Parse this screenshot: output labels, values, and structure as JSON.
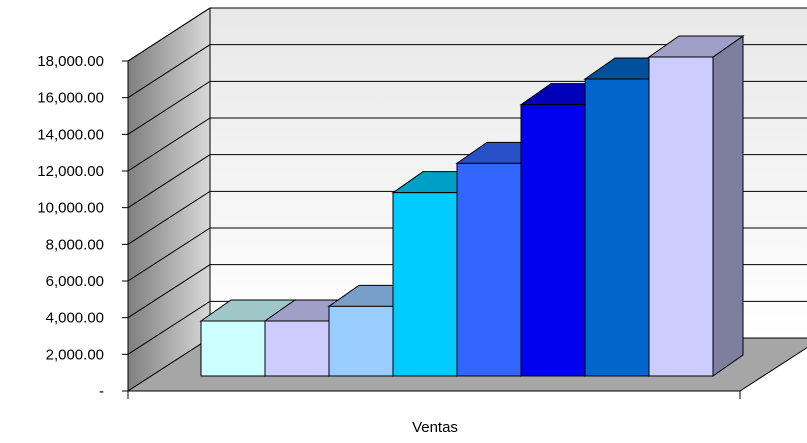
{
  "chart_data": {
    "type": "bar",
    "style": "3d-column",
    "categories": [
      "Ventas"
    ],
    "series": [
      {
        "values": [
          3000
        ],
        "color": "#ccffff"
      },
      {
        "values": [
          3000
        ],
        "color": "#ccccff"
      },
      {
        "values": [
          3800
        ],
        "color": "#99ccff"
      },
      {
        "values": [
          10000
        ],
        "color": "#00ccff"
      },
      {
        "values": [
          11600
        ],
        "color": "#3366ff"
      },
      {
        "values": [
          14800
        ],
        "color": "#0000ee"
      },
      {
        "values": [
          16200
        ],
        "color": "#0066cc"
      },
      {
        "values": [
          17400
        ],
        "color": "#ccccff"
      }
    ],
    "title": "",
    "xlabel": "Ventas",
    "ylabel": "",
    "ylim": [
      0,
      18000
    ],
    "yticks": [
      {
        "value": 0,
        "label": "-"
      },
      {
        "value": 2000,
        "label": "2,000.00"
      },
      {
        "value": 4000,
        "label": "4,000.00"
      },
      {
        "value": 6000,
        "label": "6,000.00"
      },
      {
        "value": 8000,
        "label": "8,000.00"
      },
      {
        "value": 10000,
        "label": "10,000.00"
      },
      {
        "value": 12000,
        "label": "12,000.00"
      },
      {
        "value": 14000,
        "label": "14,000.00"
      },
      {
        "value": 16000,
        "label": "16,000.00"
      },
      {
        "value": 18000,
        "label": "18,000.00"
      }
    ],
    "grid": true,
    "legend": "none",
    "colors": {
      "back_wall": "#f2f2f2",
      "side_wall": "#a6a6a6",
      "floor": "#a6a6a6",
      "gridline": "#000000"
    }
  }
}
